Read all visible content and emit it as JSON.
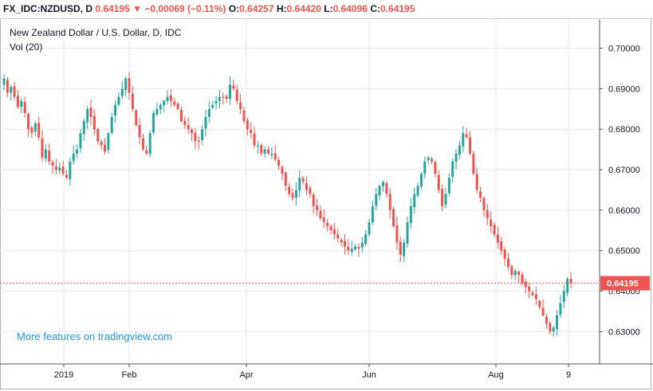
{
  "header": {
    "symbol": "FX_IDC:NZDUSD, D",
    "last": "0.64195",
    "change_arrow": "▼",
    "change": "−0.00069 (−0.11%)",
    "open_label": "O:",
    "open": "0.64257",
    "high_label": "H:",
    "high": "0.64420",
    "low_label": "L:",
    "low": "0.64096",
    "close_label": "C:",
    "close": "0.64195"
  },
  "legend": {
    "title": "New Zealand Dollar / U.S. Dollar, D, IDC",
    "volume": "Vol (20)"
  },
  "promo": "More features on tradingview.com",
  "colors": {
    "up": "#26a69a",
    "down": "#ef5350",
    "price_line": "#ef5350",
    "grid": "#e6e9ec",
    "promo": "#2196f3"
  },
  "chart_data": {
    "type": "candlestick",
    "symbol": "NZDUSD",
    "interval": "D",
    "ylim": [
      0.622,
      0.707
    ],
    "y_ticks": [
      "0.70000",
      "0.69000",
      "0.68000",
      "0.67000",
      "0.66000",
      "0.65000",
      "0.64000",
      "0.63000"
    ],
    "x_ticks": [
      "2019",
      "Feb",
      "Apr",
      "Jun",
      "Aug",
      "9"
    ],
    "current_price": "0.64195",
    "closes": [
      0.6925,
      0.689,
      0.6905,
      0.688,
      0.6855,
      0.687,
      0.684,
      0.68,
      0.679,
      0.6815,
      0.678,
      0.673,
      0.675,
      0.672,
      0.671,
      0.67,
      0.6705,
      0.669,
      0.668,
      0.672,
      0.674,
      0.675,
      0.679,
      0.682,
      0.685,
      0.683,
      0.68,
      0.677,
      0.676,
      0.6745,
      0.679,
      0.683,
      0.686,
      0.688,
      0.69,
      0.6925,
      0.689,
      0.685,
      0.681,
      0.678,
      0.675,
      0.674,
      0.679,
      0.684,
      0.685,
      0.686,
      0.687,
      0.688,
      0.687,
      0.686,
      0.685,
      0.682,
      0.681,
      0.68,
      0.679,
      0.677,
      0.677,
      0.68,
      0.683,
      0.685,
      0.686,
      0.687,
      0.688,
      0.688,
      0.6875,
      0.691,
      0.69,
      0.687,
      0.685,
      0.682,
      0.68,
      0.679,
      0.676,
      0.676,
      0.674,
      0.675,
      0.674,
      0.674,
      0.6725,
      0.671,
      0.669,
      0.666,
      0.664,
      0.663,
      0.665,
      0.668,
      0.667,
      0.665,
      0.664,
      0.661,
      0.66,
      0.658,
      0.657,
      0.656,
      0.655,
      0.654,
      0.653,
      0.652,
      0.651,
      0.65,
      0.6505,
      0.651,
      0.6505,
      0.652,
      0.654,
      0.657,
      0.661,
      0.664,
      0.666,
      0.667,
      0.664,
      0.66,
      0.656,
      0.652,
      0.649,
      0.652,
      0.657,
      0.661,
      0.664,
      0.666,
      0.669,
      0.672,
      0.673,
      0.672,
      0.669,
      0.665,
      0.661,
      0.664,
      0.668,
      0.672,
      0.674,
      0.676,
      0.679,
      0.678,
      0.674,
      0.669,
      0.665,
      0.663,
      0.66,
      0.658,
      0.656,
      0.654,
      0.652,
      0.65,
      0.648,
      0.646,
      0.644,
      0.645,
      0.644,
      0.642,
      0.641,
      0.64,
      0.639,
      0.638,
      0.636,
      0.634,
      0.632,
      0.63,
      0.631,
      0.634,
      0.637,
      0.64,
      0.643,
      0.642
    ]
  }
}
